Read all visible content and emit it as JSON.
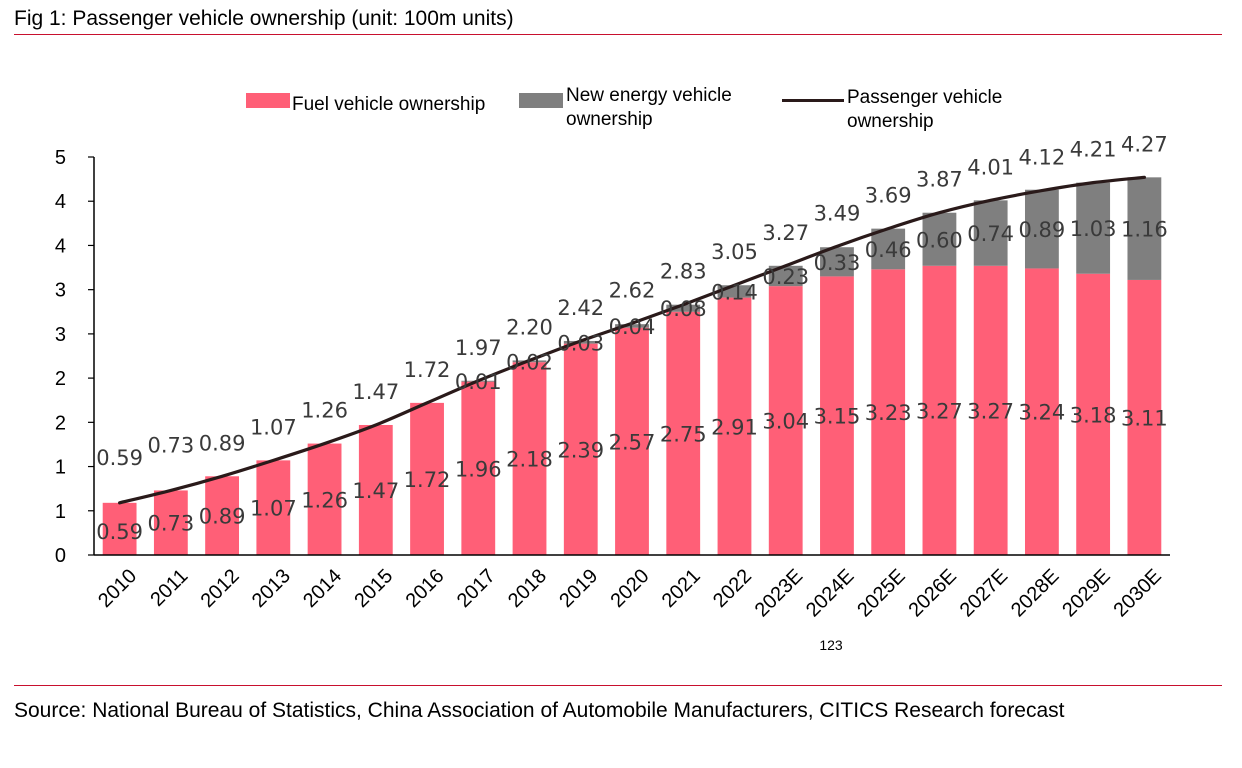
{
  "figure": {
    "title": "Fig 1: Passenger vehicle ownership (unit: 100m units)",
    "source": "Source: National Bureau of Statistics, China Association of Automobile Manufacturers, CITICS Research forecast",
    "stray_label": "123"
  },
  "colors": {
    "fuel": "#ff5f77",
    "nev": "#7f7f7f",
    "line": "#2a1a1a",
    "rule": "#c8102e"
  },
  "chart_data": {
    "type": "bar",
    "stacked": true,
    "categories": [
      "2010",
      "2011",
      "2012",
      "2013",
      "2014",
      "2015",
      "2016",
      "2017",
      "2018",
      "2019",
      "2020",
      "2021",
      "2022",
      "2023E",
      "2024E",
      "2025E",
      "2026E",
      "2027E",
      "2028E",
      "2029E",
      "2030E"
    ],
    "series": [
      {
        "name": "Fuel vehicle ownership",
        "kind": "bar",
        "values": [
          0.59,
          0.73,
          0.89,
          1.07,
          1.26,
          1.47,
          1.72,
          1.96,
          2.18,
          2.39,
          2.57,
          2.75,
          2.91,
          3.04,
          3.15,
          3.23,
          3.27,
          3.27,
          3.24,
          3.18,
          3.11
        ]
      },
      {
        "name": "New energy vehicle ownership",
        "kind": "bar",
        "values": [
          0,
          0,
          0,
          0,
          0,
          0,
          0,
          0.01,
          0.02,
          0.03,
          0.04,
          0.08,
          0.14,
          0.23,
          0.33,
          0.46,
          0.6,
          0.74,
          0.89,
          1.03,
          1.16
        ]
      },
      {
        "name": "Passenger vehicle ownership",
        "kind": "line",
        "values": [
          0.59,
          0.73,
          0.89,
          1.07,
          1.26,
          1.47,
          1.72,
          1.97,
          2.2,
          2.42,
          2.62,
          2.83,
          3.05,
          3.27,
          3.49,
          3.69,
          3.87,
          4.01,
          4.12,
          4.21,
          4.27
        ]
      }
    ],
    "fuel_labels": [
      "0.59",
      "0.73",
      "0.89",
      "1.07",
      "1.26",
      "1.47",
      "1.72",
      "1.96",
      "2.18",
      "2.39",
      "2.57",
      "2.75",
      "2.91",
      "3.04",
      "3.15",
      "3.23",
      "3.27",
      "3.27",
      "3.24",
      "3.18",
      "3.11"
    ],
    "nev_labels": [
      "",
      "",
      "",
      "",
      "",
      "",
      "",
      "0.01",
      "0.02",
      "0.03",
      "0.04",
      "0.08",
      "0.14",
      "0.23",
      "0.33",
      "0.46",
      "0.60",
      "0.74",
      "0.89",
      "1.03",
      "1.16"
    ],
    "total_labels": [
      "0.59",
      "0.73",
      "0.89",
      "1.07",
      "1.26",
      "1.47",
      "1.72",
      "1.97",
      "2.20",
      "2.42",
      "2.62",
      "2.83",
      "3.05",
      "3.27",
      "3.49",
      "3.69",
      "3.87",
      "4.01",
      "4.12",
      "4.21",
      "4.27"
    ],
    "y_tick_labels": [
      "0",
      "1",
      "1",
      "2",
      "2",
      "3",
      "3",
      "4",
      "4",
      "5"
    ],
    "ylim": [
      0,
      4.5
    ],
    "xlabel": "",
    "ylabel": "",
    "grid": false,
    "legend_position": "top"
  }
}
